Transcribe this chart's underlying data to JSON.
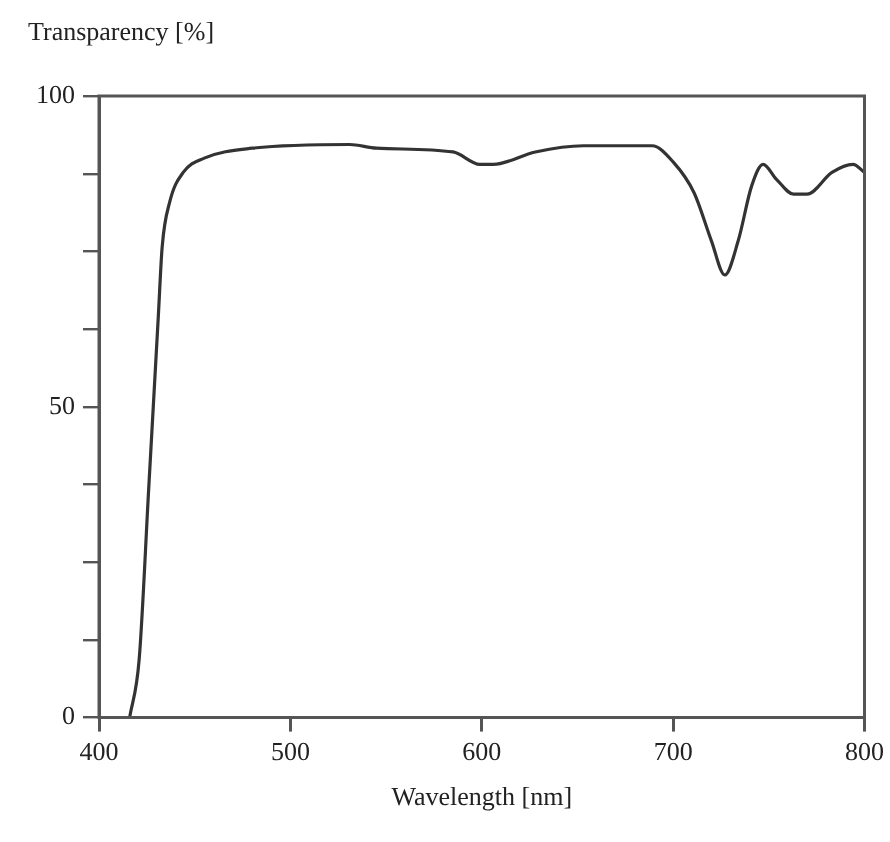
{
  "chart_data": {
    "type": "line",
    "xlabel": "Wavelength [nm]",
    "ylabel": "Transparency [%]",
    "x": [
      416,
      421,
      426,
      431,
      433,
      437,
      444,
      455,
      480,
      531,
      545,
      585,
      599,
      606,
      628,
      653,
      689,
      700,
      711,
      720,
      727,
      734,
      741,
      747,
      754,
      763,
      770,
      783,
      794,
      800
    ],
    "series": [
      {
        "color": "#333333",
        "values": [
          0,
          9.4,
          37,
          64.6,
          75.7,
          83,
          87.7,
          90,
          91.6,
          92.2,
          91.6,
          91,
          89,
          89,
          91,
          92,
          92,
          89.4,
          84.4,
          76.7,
          71.2,
          76.7,
          85.5,
          89,
          86.6,
          84.2,
          84.2,
          87.7,
          89,
          87.7
        ]
      }
    ],
    "xlim": [
      400,
      800
    ],
    "xticks": [
      400,
      500,
      600,
      700,
      800
    ],
    "ylim": [
      0,
      100
    ],
    "yticks": [
      0,
      {
        "value": 12.5,
        "label": null
      },
      {
        "value": 25,
        "label": null
      },
      {
        "value": 37.5,
        "label": null
      },
      50,
      {
        "value": 62.5,
        "label": null
      },
      {
        "value": 75,
        "label": null
      },
      {
        "value": 87.5,
        "label": null
      },
      100
    ],
    "grid": false,
    "legend": false,
    "marker": "none",
    "line_style": "solid"
  }
}
